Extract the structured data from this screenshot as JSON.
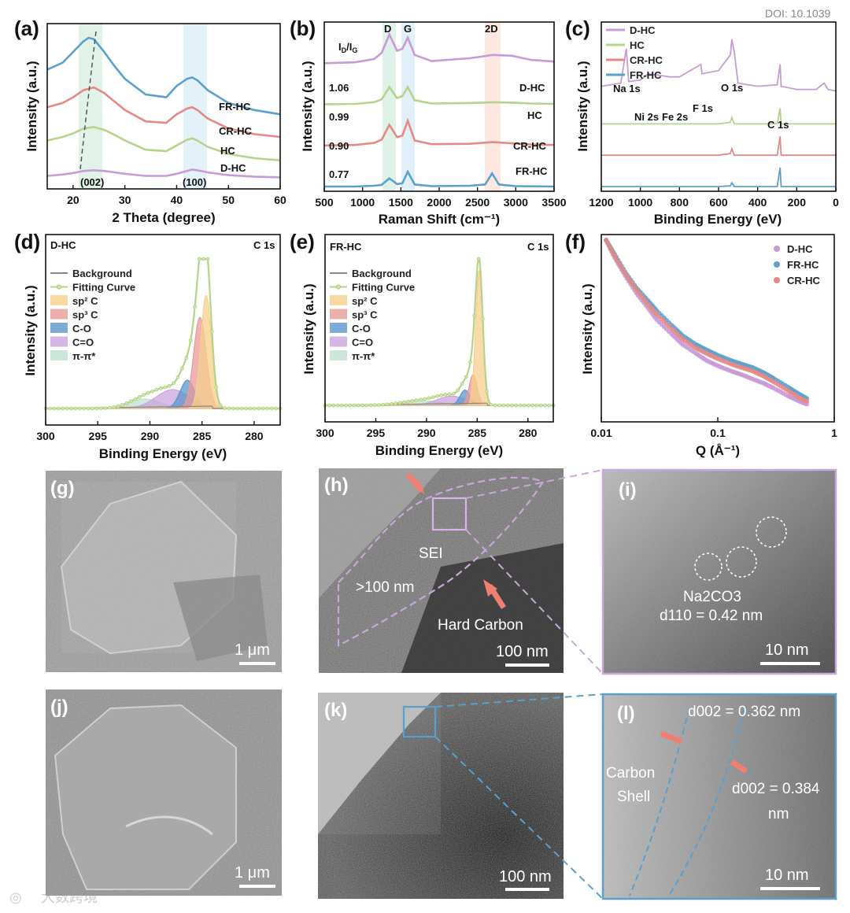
{
  "header": {
    "doi": "DOI: 10.1039"
  },
  "watermark": {
    "text": "大数跨境"
  },
  "colors": {
    "D-HC": "#c89ad6",
    "FR-HC": "#5aa0cc",
    "CR-HC": "#e48a86",
    "HC": "#b6d38c"
  },
  "chart_data": [
    {
      "panel": "(a)",
      "type": "line",
      "xlabel": "2 Theta (degree)",
      "ylabel": "Intensity (a.u.)",
      "xlim": [
        15,
        60
      ],
      "xticks": [
        20,
        30,
        40,
        50,
        60
      ],
      "peak_labels": [
        "(002)",
        "(100)"
      ],
      "series": [
        {
          "name": "D-HC",
          "x": [
            15,
            18,
            20,
            22,
            24,
            26,
            28,
            30,
            34,
            38,
            40,
            42,
            43,
            44,
            46,
            50,
            55,
            60
          ],
          "y": [
            0.05,
            0.07,
            0.09,
            0.12,
            0.13,
            0.12,
            0.1,
            0.08,
            0.05,
            0.05,
            0.08,
            0.12,
            0.14,
            0.13,
            0.1,
            0.06,
            0.04,
            0.03
          ]
        },
        {
          "name": "HC",
          "x": [
            15,
            18,
            20,
            22,
            24,
            26,
            28,
            30,
            34,
            38,
            40,
            42,
            43,
            44,
            46,
            50,
            55,
            60
          ],
          "y": [
            0.55,
            0.6,
            0.65,
            0.72,
            0.74,
            0.7,
            0.63,
            0.55,
            0.42,
            0.4,
            0.48,
            0.56,
            0.58,
            0.55,
            0.46,
            0.36,
            0.3,
            0.27
          ]
        },
        {
          "name": "CR-HC",
          "x": [
            15,
            18,
            20,
            22,
            24,
            26,
            28,
            30,
            34,
            38,
            40,
            42,
            43,
            44,
            46,
            50,
            55,
            60
          ],
          "y": [
            1.02,
            1.08,
            1.16,
            1.26,
            1.3,
            1.22,
            1.1,
            0.98,
            0.82,
            0.8,
            0.92,
            1.0,
            1.02,
            0.98,
            0.86,
            0.72,
            0.64,
            0.6
          ]
        },
        {
          "name": "FR-HC",
          "x": [
            15,
            18,
            20,
            22,
            23,
            24,
            26,
            28,
            30,
            34,
            38,
            40,
            42,
            43,
            44,
            46,
            50,
            55,
            60
          ],
          "y": [
            1.55,
            1.65,
            1.8,
            1.95,
            2.0,
            1.98,
            1.8,
            1.6,
            1.42,
            1.2,
            1.16,
            1.32,
            1.42,
            1.44,
            1.4,
            1.26,
            1.08,
            0.98,
            0.92
          ]
        }
      ]
    },
    {
      "panel": "(b)",
      "type": "line",
      "xlabel": "Raman Shift (cm⁻¹)",
      "ylabel": "Intensity (a.u.)",
      "xlim": [
        500,
        3500
      ],
      "xticks": [
        500,
        1000,
        1500,
        2000,
        2500,
        3000,
        3500
      ],
      "band_labels": [
        "D",
        "G",
        "2D"
      ],
      "ratio_label": "ID/IG",
      "ratios": [
        "1.06",
        "0.99",
        "0.90",
        "0.77"
      ],
      "series": [
        {
          "name": "D-HC",
          "x": [
            500,
            900,
            1150,
            1250,
            1350,
            1450,
            1520,
            1590,
            1680,
            1900,
            2400,
            2700,
            2950,
            3200,
            3500
          ],
          "y": [
            3.0,
            3.02,
            3.1,
            3.25,
            3.7,
            3.3,
            3.35,
            3.62,
            3.2,
            3.05,
            3.12,
            3.2,
            3.18,
            3.08,
            3.04
          ]
        },
        {
          "name": "HC",
          "x": [
            500,
            900,
            1150,
            1250,
            1350,
            1450,
            1520,
            1590,
            1680,
            1900,
            2400,
            2700,
            2950,
            3200,
            3500
          ],
          "y": [
            2.0,
            2.01,
            2.05,
            2.12,
            2.42,
            2.15,
            2.2,
            2.42,
            2.1,
            2.02,
            2.03,
            2.05,
            2.04,
            2.02,
            2.01
          ]
        },
        {
          "name": "CR-HC",
          "x": [
            500,
            900,
            1150,
            1250,
            1350,
            1450,
            1520,
            1590,
            1680,
            1900,
            2400,
            2700,
            2950,
            3200,
            3500
          ],
          "y": [
            1.0,
            1.01,
            1.06,
            1.14,
            1.5,
            1.2,
            1.24,
            1.6,
            1.12,
            1.03,
            1.04,
            1.08,
            1.05,
            1.02,
            1.01
          ]
        },
        {
          "name": "FR-HC",
          "x": [
            500,
            900,
            1150,
            1250,
            1350,
            1450,
            1520,
            1590,
            1680,
            1900,
            2400,
            2600,
            2690,
            2780,
            3000,
            3500
          ],
          "y": [
            0.0,
            0.0,
            0.02,
            0.04,
            0.2,
            0.06,
            0.08,
            0.36,
            0.05,
            0.01,
            0.02,
            0.05,
            0.32,
            0.05,
            0.01,
            0.0
          ]
        }
      ]
    },
    {
      "panel": "(c)",
      "type": "line",
      "xlabel": "Binding Energy (eV)",
      "ylabel": "Intensity (a.u.)",
      "xlim": [
        1200,
        0
      ],
      "xticks": [
        1200,
        1000,
        800,
        600,
        400,
        200,
        0
      ],
      "peak_labels": [
        "Na 1s",
        "Ni 2s",
        "Fe 2s",
        "F 1s",
        "O 1s",
        "C 1s"
      ],
      "series": [
        {
          "name": "D-HC",
          "x": [
            1200,
            1100,
            1072,
            1060,
            1000,
            960,
            850,
            800,
            690,
            685,
            600,
            540,
            532,
            520,
            500,
            400,
            300,
            285,
            280,
            200,
            100,
            60,
            40,
            0
          ],
          "y": [
            3.2,
            3.3,
            4.4,
            3.35,
            3.4,
            3.6,
            3.5,
            3.5,
            3.9,
            3.6,
            3.7,
            4.2,
            4.7,
            4.3,
            3.3,
            3.2,
            3.25,
            3.9,
            3.2,
            3.1,
            3.1,
            3.3,
            3.1,
            3.05
          ]
        },
        {
          "name": "HC",
          "x": [
            1200,
            1000,
            800,
            600,
            540,
            532,
            520,
            400,
            300,
            285,
            280,
            200,
            0
          ],
          "y": [
            2.0,
            2.0,
            2.0,
            2.0,
            2.05,
            2.2,
            2.0,
            2.0,
            2.0,
            2.5,
            2.0,
            2.0,
            2.0
          ]
        },
        {
          "name": "CR-HC",
          "x": [
            1200,
            1000,
            800,
            600,
            540,
            532,
            520,
            400,
            300,
            285,
            280,
            200,
            0
          ],
          "y": [
            1.0,
            1.0,
            1.0,
            1.0,
            1.05,
            1.2,
            1.0,
            1.0,
            1.0,
            1.6,
            1.0,
            1.0,
            1.0
          ]
        },
        {
          "name": "FR-HC",
          "x": [
            1200,
            1000,
            800,
            600,
            540,
            532,
            520,
            400,
            300,
            285,
            280,
            200,
            0
          ],
          "y": [
            0.0,
            0.0,
            0.0,
            0.0,
            0.02,
            0.12,
            0.0,
            0.0,
            0.0,
            0.6,
            0.0,
            0.0,
            0.0
          ]
        }
      ]
    },
    {
      "panel": "(d)",
      "type": "area",
      "sample": "D-HC",
      "core_level": "C 1s",
      "xlabel": "Binding Energy (eV)",
      "ylabel": "Intensity (a.u.)",
      "xlim": [
        300,
        277.5
      ],
      "xticks": [
        300,
        295,
        290,
        285,
        280
      ],
      "legend": [
        "Background",
        "Fitting Curve",
        "sp2 C",
        "sp3 C",
        "C-O",
        "C=O",
        "π-π*"
      ],
      "components": [
        {
          "name": "sp2 C",
          "center": 284.6,
          "height": 0.72,
          "width": 0.5
        },
        {
          "name": "sp3 C",
          "center": 285.2,
          "height": 0.58,
          "width": 0.6
        },
        {
          "name": "C-O",
          "center": 286.4,
          "height": 0.18,
          "width": 0.7
        },
        {
          "name": "C=O",
          "center": 287.8,
          "height": 0.12,
          "width": 1.6
        },
        {
          "name": "π-π*",
          "center": 290.5,
          "height": 0.06,
          "width": 1.5
        }
      ],
      "fit_peak": 0.98
    },
    {
      "panel": "(e)",
      "type": "area",
      "sample": "FR-HC",
      "core_level": "C 1s",
      "xlabel": "Binding Energy (eV)",
      "ylabel": "Intensity (a.u.)",
      "xlim": [
        300,
        277.5
      ],
      "xticks": [
        300,
        295,
        290,
        285,
        280
      ],
      "legend": [
        "Background",
        "Fitting Curve",
        "sp2 C",
        "sp3 C",
        "C-O",
        "C=O",
        "π-π*"
      ],
      "components": [
        {
          "name": "sp2 C",
          "center": 284.8,
          "height": 0.88,
          "width": 0.35
        },
        {
          "name": "sp3 C",
          "center": 285.4,
          "height": 0.2,
          "width": 0.4
        },
        {
          "name": "C-O",
          "center": 286.2,
          "height": 0.1,
          "width": 0.5
        },
        {
          "name": "C=O",
          "center": 287.5,
          "height": 0.06,
          "width": 1.5
        },
        {
          "name": "π-π*",
          "center": 290.5,
          "height": 0.03,
          "width": 2.0
        }
      ],
      "fit_peak": 0.98
    },
    {
      "panel": "(f)",
      "type": "scatter",
      "xlabel": "Q (Å⁻¹)",
      "ylabel": "Intensity (a.u.)",
      "x_scale": "log",
      "xlim": [
        0.01,
        1
      ],
      "xticks": [
        "0.01",
        "0.1",
        "1"
      ],
      "series": [
        {
          "name": "D-HC",
          "q": [
            0.011,
            0.013,
            0.016,
            0.02,
            0.025,
            0.03,
            0.04,
            0.05,
            0.065,
            0.08,
            0.1,
            0.13,
            0.16,
            0.2,
            0.25,
            0.3,
            0.4,
            0.5,
            0.6
          ],
          "y": [
            1.0,
            0.9,
            0.8,
            0.7,
            0.62,
            0.55,
            0.47,
            0.41,
            0.36,
            0.32,
            0.29,
            0.26,
            0.24,
            0.215,
            0.19,
            0.165,
            0.12,
            0.09,
            0.07
          ]
        },
        {
          "name": "FR-HC",
          "q": [
            0.011,
            0.013,
            0.016,
            0.02,
            0.025,
            0.03,
            0.04,
            0.05,
            0.065,
            0.08,
            0.1,
            0.13,
            0.16,
            0.2,
            0.25,
            0.3,
            0.4,
            0.5,
            0.6
          ],
          "y": [
            1.0,
            0.92,
            0.82,
            0.73,
            0.66,
            0.6,
            0.52,
            0.46,
            0.41,
            0.38,
            0.35,
            0.32,
            0.3,
            0.28,
            0.25,
            0.22,
            0.17,
            0.13,
            0.1
          ]
        },
        {
          "name": "CR-HC",
          "q": [
            0.011,
            0.013,
            0.016,
            0.02,
            0.025,
            0.03,
            0.04,
            0.05,
            0.065,
            0.08,
            0.1,
            0.13,
            0.16,
            0.2,
            0.25,
            0.3,
            0.4,
            0.5,
            0.6
          ],
          "y": [
            1.0,
            0.91,
            0.81,
            0.72,
            0.64,
            0.58,
            0.5,
            0.44,
            0.39,
            0.36,
            0.33,
            0.3,
            0.28,
            0.26,
            0.23,
            0.2,
            0.15,
            0.11,
            0.085
          ]
        }
      ]
    }
  ],
  "images": {
    "g": {
      "label": "(g)",
      "scale": "1 μm"
    },
    "h": {
      "label": "(h)",
      "scale": "100 nm",
      "sei": "SEI",
      "thickness": ">100 nm",
      "hard_carbon": "Hard Carbon"
    },
    "i": {
      "label": "(i)",
      "scale": "10 nm",
      "phase": "Na2CO3",
      "dspacing": "d110 = 0.42 nm"
    },
    "j": {
      "label": "(j)",
      "scale": "1 μm"
    },
    "k": {
      "label": "(k)",
      "scale": "100 nm"
    },
    "l": {
      "label": "(l)",
      "scale": "10 nm",
      "d1": "d002 = 0.362 nm",
      "d2": "d002 = 0.384",
      "d2_unit": "nm",
      "shell1": "Carbon",
      "shell2": "Shell"
    }
  }
}
